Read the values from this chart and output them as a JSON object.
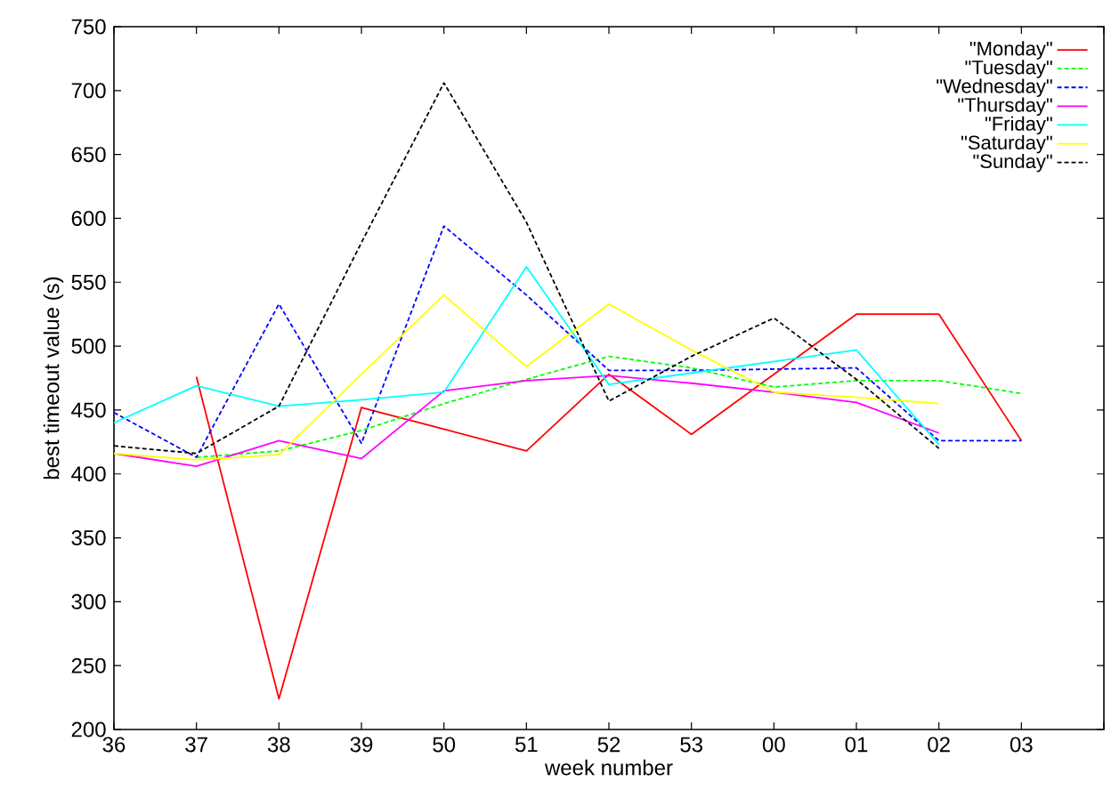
{
  "chart_data": {
    "type": "line",
    "xlabel": "week number",
    "ylabel": "best timeout value (s)",
    "categories": [
      "36",
      "37",
      "38",
      "39",
      "50",
      "51",
      "52",
      "53",
      "00",
      "01",
      "02",
      "03",
      null
    ],
    "ylim": [
      200,
      750
    ],
    "yticks": [
      200,
      250,
      300,
      350,
      400,
      450,
      500,
      550,
      600,
      650,
      700,
      750
    ],
    "grid": false,
    "legend": "top right",
    "marker": "none",
    "series": [
      {
        "name": "\"Monday\"",
        "color": "#ff0000",
        "line_style": "solid",
        "values": [
          null,
          476,
          224,
          452,
          435,
          418,
          478,
          431,
          478,
          525,
          525,
          426,
          null
        ]
      },
      {
        "name": "\"Tuesday\"",
        "color": "#00ff00",
        "line_style": "dashed",
        "values": [
          null,
          413,
          418,
          434,
          455,
          474,
          492,
          483,
          468,
          473,
          473,
          463,
          null
        ]
      },
      {
        "name": "\"Wednesday\"",
        "color": "#0000ff",
        "line_style": "dashed",
        "values": [
          448,
          413,
          533,
          424,
          594,
          540,
          481,
          481,
          482,
          483,
          426,
          426,
          null
        ]
      },
      {
        "name": "\"Thursday\"",
        "color": "#ff00ff",
        "line_style": "solid",
        "values": [
          416,
          406,
          426,
          412,
          465,
          473,
          477,
          471,
          464,
          456,
          432,
          null,
          null
        ]
      },
      {
        "name": "\"Friday\"",
        "color": "#00ffff",
        "line_style": "solid",
        "values": [
          440,
          469,
          453,
          458,
          464,
          562,
          470,
          479,
          488,
          497,
          423,
          null,
          null
        ]
      },
      {
        "name": "\"Saturday\"",
        "color": "#ffff00",
        "line_style": "solid",
        "values": [
          416,
          411,
          415,
          478,
          540,
          484,
          533,
          497,
          464,
          460,
          455,
          null,
          null
        ]
      },
      {
        "name": "\"Sunday\"",
        "color": "#000000",
        "line_style": "dashed",
        "values": [
          422,
          416,
          453,
          581,
          706,
          597,
          457,
          492,
          522,
          474,
          420,
          null,
          null
        ]
      }
    ]
  }
}
